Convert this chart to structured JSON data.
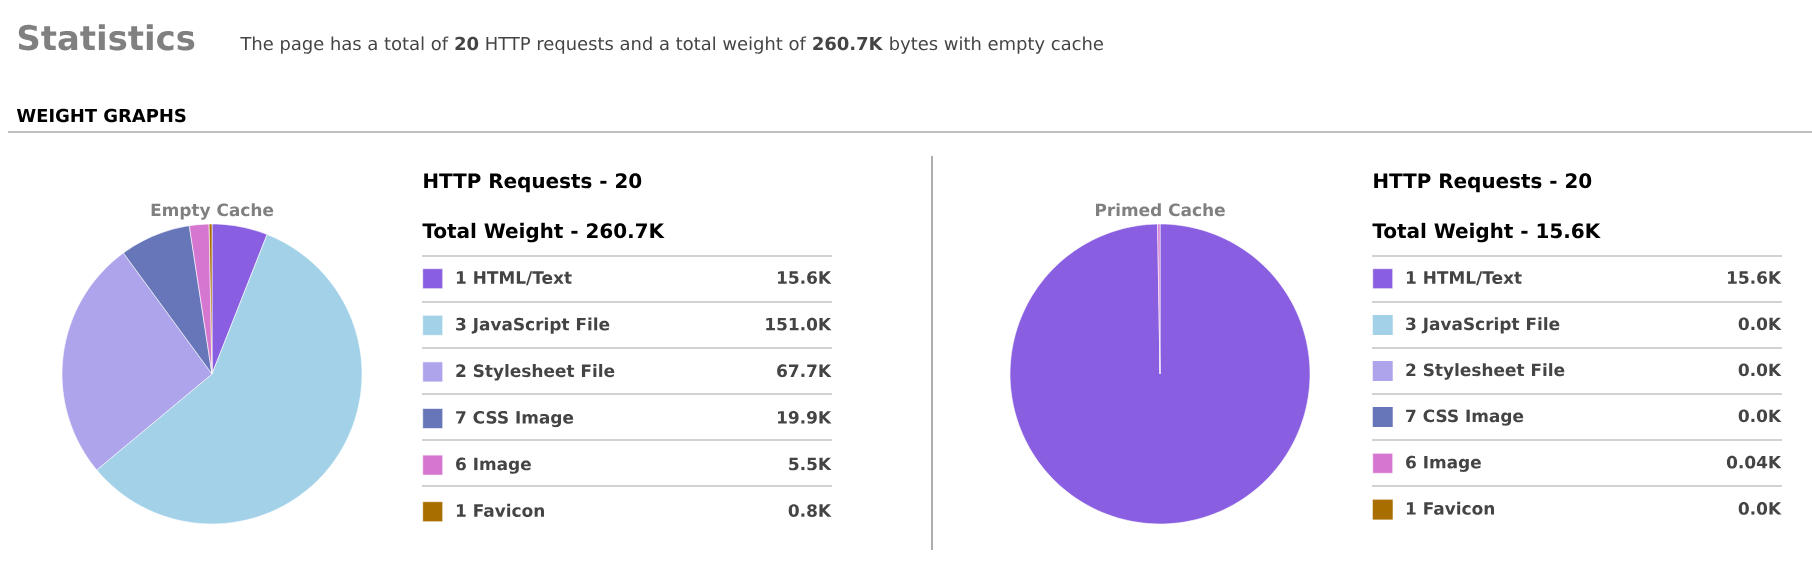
{
  "chart_data": [
    {
      "type": "pie",
      "title": "Empty Cache",
      "legend": "right",
      "annotations": [
        "Statistics",
        "The page has a total of **20** HTTP requests and a total weight of **260.7K** bytes with empty cache",
        "WEIGHT GRAPHS",
        "HTTP Requests - 20",
        "Total Weight - 260.7K"
      ],
      "categories": [
        "1 HTML/Text",
        "3 JavaScript File",
        "2 Stylesheet File",
        "7 CSS Image",
        "6 Image",
        "1 Favicon"
      ],
      "values": [
        15.6,
        151.0,
        67.7,
        19.9,
        5.5,
        0.8
      ],
      "value_labels": [
        "15.6K",
        "151.0K",
        "67.7K",
        "19.9K",
        "5.5K",
        "0.8K"
      ],
      "colors": [
        "#8a5ee0",
        "#a2d1e8",
        "#ada4ec",
        "#6676b8",
        "#d577d0",
        "#a86e00"
      ]
    },
    {
      "type": "pie",
      "title": "Primed Cache",
      "legend": "right",
      "annotations": [
        "HTTP Requests - 20",
        "Total Weight - 15.6K"
      ],
      "categories": [
        "1 HTML/Text",
        "3 JavaScript File",
        "2 Stylesheet File",
        "7 CSS Image",
        "6 Image",
        "1 Favicon"
      ],
      "values": [
        15.6,
        0.0,
        0.0,
        0.0,
        0.04,
        0.0
      ],
      "value_labels": [
        "15.6K",
        "0.0K",
        "0.0K",
        "0.0K",
        "0.04K",
        "0.0K"
      ],
      "colors": [
        "#8a5ee0",
        "#a2d1e8",
        "#ada4ec",
        "#6676b8",
        "#d577d0",
        "#a86e00"
      ]
    }
  ]
}
